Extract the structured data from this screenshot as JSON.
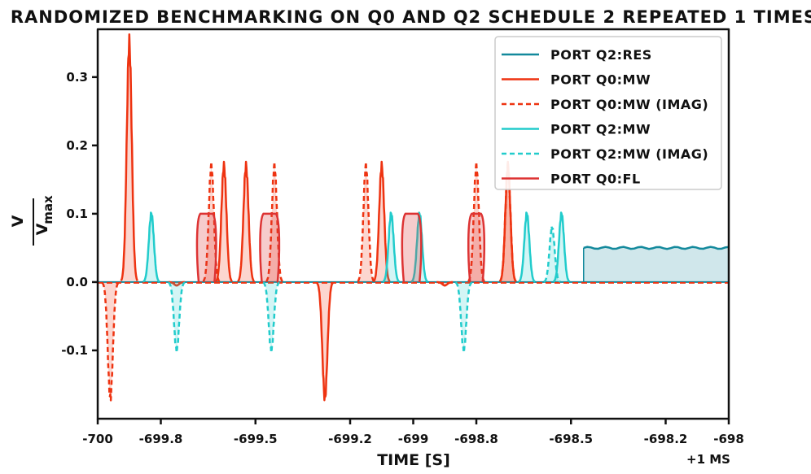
{
  "chart_data": {
    "type": "line",
    "title": "RANDOMIZED BENCHMARKING ON Q0 AND Q2 SCHEDULE 2 REPEATED 1 TIMES",
    "xlabel": "TIME [S]",
    "ylabel_num": "V",
    "ylabel_den": "V",
    "ylabel_sub": "max",
    "offset_label": "+1 MS",
    "xlim": [
      -700,
      -698
    ],
    "ylim": [
      -0.2,
      0.37
    ],
    "x_ticks": [
      -700,
      -699.8,
      -699.5,
      -699.2,
      -699,
      -698.8,
      -698.5,
      -698.2,
      -698
    ],
    "x_tick_labels": [
      "-700",
      "-699.8",
      "-699.5",
      "-699.2",
      "-699",
      "-698.8",
      "-698.5",
      "-698.2",
      "-698"
    ],
    "y_ticks": [
      -0.1,
      0.0,
      0.1,
      0.2,
      0.3
    ],
    "y_tick_labels": [
      "-0.1",
      "0.0",
      "0.1",
      "0.2",
      "0.3"
    ],
    "series": [
      {
        "name": "PORT Q2:RES",
        "color": "#13899c",
        "dash": false,
        "kind": "res",
        "segments": [
          {
            "start": -698.46,
            "end": -698.0,
            "amp": 0.05
          }
        ]
      },
      {
        "name": "PORT Q0:MW",
        "color": "#ee3311",
        "dash": false,
        "kind": "gauss",
        "pulses": [
          [
            -699.9,
            0.35
          ],
          [
            -699.75,
            -0.005
          ],
          [
            -699.6,
            0.17
          ],
          [
            -699.53,
            0.17
          ],
          [
            -699.28,
            -0.17
          ],
          [
            -699.1,
            0.17
          ],
          [
            -698.99,
            0.0
          ],
          [
            -698.9,
            -0.005
          ],
          [
            -698.75,
            0.0
          ],
          [
            -698.7,
            0.17
          ]
        ]
      },
      {
        "name": "PORT Q0:MW (IMAG)",
        "color": "#ee3311",
        "dash": true,
        "kind": "gauss",
        "pulses": [
          [
            -699.96,
            -0.17
          ],
          [
            -699.64,
            0.17
          ],
          [
            -699.44,
            0.17
          ],
          [
            -699.24,
            0.0
          ],
          [
            -699.15,
            0.17
          ],
          [
            -698.98,
            0.0
          ],
          [
            -698.8,
            0.17
          ],
          [
            -698.7,
            0.17
          ]
        ]
      },
      {
        "name": "PORT Q2:MW",
        "color": "#22cccc",
        "dash": false,
        "kind": "gauss",
        "pulses": [
          [
            -699.83,
            0.1
          ],
          [
            -699.62,
            0.0
          ],
          [
            -699.3,
            0.0
          ],
          [
            -699.07,
            0.1
          ],
          [
            -698.98,
            0.1
          ],
          [
            -698.8,
            0.0
          ],
          [
            -698.64,
            0.1
          ],
          [
            -698.53,
            0.1
          ]
        ]
      },
      {
        "name": "PORT Q2:MW (IMAG)",
        "color": "#22cccc",
        "dash": true,
        "kind": "gauss",
        "pulses": [
          [
            -699.75,
            -0.1
          ],
          [
            -699.58,
            0.0
          ],
          [
            -699.45,
            -0.1
          ],
          [
            -698.92,
            0.0
          ],
          [
            -698.84,
            -0.1
          ],
          [
            -698.56,
            0.08
          ]
        ]
      },
      {
        "name": "PORT Q0:FL",
        "color": "#dd3333",
        "dash": false,
        "kind": "rect",
        "pulses": [
          [
            -699.68,
            -699.63,
            0.1
          ],
          [
            -699.48,
            -699.43,
            0.1
          ],
          [
            -699.03,
            -698.98,
            0.1
          ],
          [
            -698.82,
            -698.78,
            0.1
          ]
        ]
      }
    ],
    "legend": {
      "position": "top-right",
      "entries": [
        "PORT Q2:RES",
        "PORT Q0:MW",
        "PORT Q0:MW (IMAG)",
        "PORT Q2:MW",
        "PORT Q2:MW (IMAG)",
        "PORT Q0:FL"
      ]
    },
    "grid": false
  }
}
